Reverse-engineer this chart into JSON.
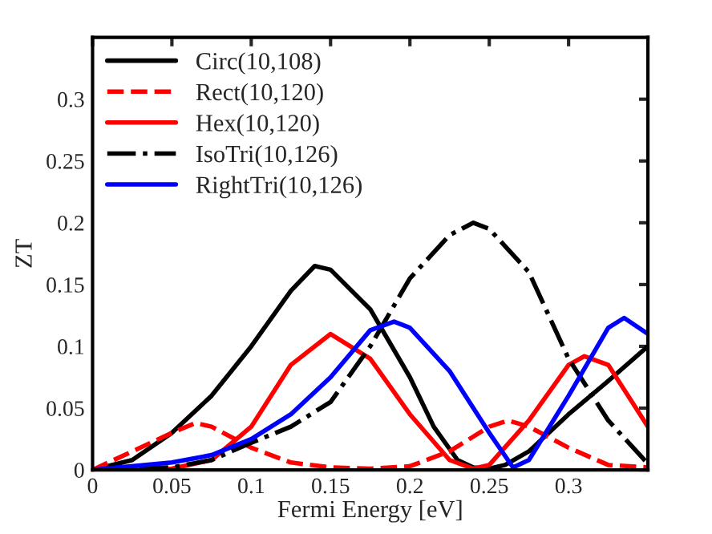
{
  "chart_data": {
    "type": "line",
    "xlabel": "Fermi Energy [eV]",
    "ylabel": "ZT",
    "xlim": [
      0,
      0.35
    ],
    "ylim": [
      0,
      0.35
    ],
    "xticks": [
      0,
      0.05,
      0.1,
      0.15,
      0.2,
      0.25,
      0.3
    ],
    "yticks": [
      0,
      0.05,
      0.1,
      0.15,
      0.2,
      0.25,
      0.3
    ],
    "legend": "top left",
    "grid": false,
    "series": [
      {
        "name": "Circ(10,108)",
        "color": "#000000",
        "line_style": "solid",
        "x": [
          0,
          0.025,
          0.05,
          0.075,
          0.1,
          0.125,
          0.14,
          0.15,
          0.175,
          0.2,
          0.215,
          0.23,
          0.24,
          0.25,
          0.26,
          0.275,
          0.3,
          0.325,
          0.35
        ],
        "values": [
          0,
          0.008,
          0.03,
          0.06,
          0.1,
          0.145,
          0.165,
          0.162,
          0.13,
          0.075,
          0.035,
          0.008,
          0.002,
          0.001,
          0.004,
          0.015,
          0.045,
          0.072,
          0.1
        ]
      },
      {
        "name": "Rect(10,120)",
        "color": "#ff0000",
        "line_style": "dashed",
        "x": [
          0,
          0.025,
          0.05,
          0.065,
          0.075,
          0.1,
          0.125,
          0.15,
          0.175,
          0.2,
          0.225,
          0.25,
          0.262,
          0.275,
          0.3,
          0.325,
          0.35
        ],
        "values": [
          0,
          0.015,
          0.03,
          0.038,
          0.035,
          0.018,
          0.006,
          0.002,
          0.001,
          0.003,
          0.015,
          0.035,
          0.04,
          0.035,
          0.018,
          0.004,
          0.002
        ]
      },
      {
        "name": "Hex(10,120)",
        "color": "#ff0000",
        "line_style": "solid",
        "x": [
          0,
          0.05,
          0.075,
          0.1,
          0.125,
          0.15,
          0.175,
          0.2,
          0.225,
          0.24,
          0.25,
          0.275,
          0.3,
          0.31,
          0.325,
          0.35
        ],
        "values": [
          0,
          0.001,
          0.008,
          0.035,
          0.085,
          0.11,
          0.09,
          0.045,
          0.008,
          0.001,
          0.004,
          0.04,
          0.085,
          0.092,
          0.085,
          0.035
        ]
      },
      {
        "name": "IsoTri(10,126)",
        "color": "#000000",
        "line_style": "dashdot",
        "x": [
          0,
          0.05,
          0.075,
          0.1,
          0.125,
          0.15,
          0.175,
          0.2,
          0.225,
          0.24,
          0.25,
          0.275,
          0.3,
          0.325,
          0.35
        ],
        "values": [
          0,
          0.002,
          0.008,
          0.022,
          0.035,
          0.055,
          0.1,
          0.155,
          0.19,
          0.2,
          0.195,
          0.16,
          0.09,
          0.04,
          0.005
        ]
      },
      {
        "name": "RightTri(10,126)",
        "color": "#0000ff",
        "line_style": "solid",
        "x": [
          0,
          0.05,
          0.075,
          0.1,
          0.125,
          0.15,
          0.175,
          0.19,
          0.2,
          0.225,
          0.25,
          0.265,
          0.275,
          0.3,
          0.325,
          0.335,
          0.35
        ],
        "values": [
          0,
          0.006,
          0.012,
          0.025,
          0.045,
          0.075,
          0.113,
          0.12,
          0.115,
          0.08,
          0.03,
          0.002,
          0.008,
          0.06,
          0.115,
          0.123,
          0.11
        ]
      }
    ]
  }
}
